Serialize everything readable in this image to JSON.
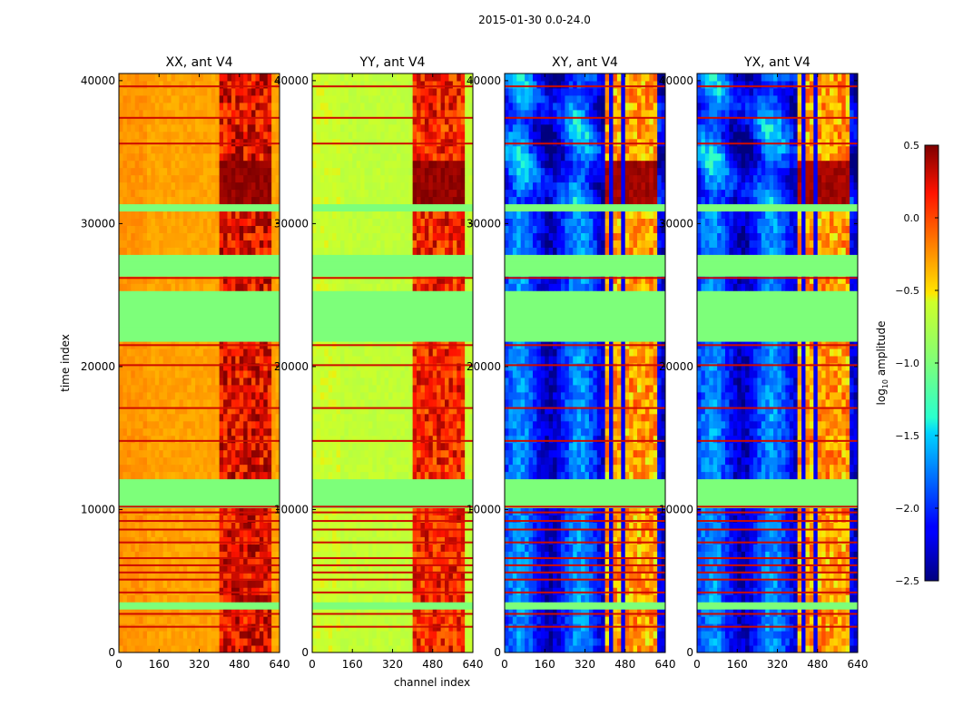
{
  "chart_data": {
    "type": "heatmap",
    "suptitle": "2015-01-30 0.0-24.0",
    "xlabel": "channel index",
    "ylabel": "time index",
    "x_range": [
      0,
      640
    ],
    "y_range": [
      0,
      40500
    ],
    "x_ticks": [
      0,
      160,
      320,
      480,
      640
    ],
    "y_ticks": [
      0,
      10000,
      20000,
      30000,
      40000
    ],
    "colorbar": {
      "label": "log10 amplitude",
      "label_base": "log",
      "label_sub": "10",
      "label_rest": " amplitude",
      "range": [
        -2.5,
        0.5
      ],
      "ticks": [
        0.5,
        0.0,
        -0.5,
        -1.0,
        -1.5,
        -2.0,
        -2.5
      ],
      "tick_labels": [
        "0.5",
        "0.0",
        "−0.5",
        "−1.0",
        "−1.5",
        "−2.0",
        "−2.5"
      ],
      "colormap": "jet"
    },
    "gap_rows": [
      [
        3000,
        3700
      ],
      [
        10300,
        12200
      ],
      [
        12600,
        12700
      ],
      [
        21800,
        25500
      ],
      [
        26500,
        28000
      ],
      [
        30900,
        31000
      ],
      [
        31000,
        31200
      ]
    ],
    "flagged_value": -1.0,
    "panels": [
      {
        "title": "XX, ant V4",
        "polarization": "XX",
        "background_level": -0.3,
        "rfi_band_channels": [
          400,
          600
        ],
        "rfi_band_level": 0.1,
        "strong_rfi_time_range": [
          31500,
          34500
        ],
        "strong_rfi_level": 0.45,
        "gap_fill_level": -1.0
      },
      {
        "title": "YY, ant V4",
        "polarization": "YY",
        "background_level": -0.65,
        "rfi_band_channels": [
          400,
          600
        ],
        "rfi_band_level": 0.0,
        "strong_rfi_time_range": [
          31500,
          34500
        ],
        "strong_rfi_level": 0.45,
        "gap_fill_level": -1.0
      },
      {
        "title": "XY, ant V4",
        "polarization": "XY",
        "background_level": -2.0,
        "rfi_band_channels": [
          400,
          600
        ],
        "rfi_band_level": -0.4,
        "strong_rfi_time_range": [
          31500,
          34500
        ],
        "strong_rfi_level": 0.4,
        "gap_fill_level": -1.0
      },
      {
        "title": "YX, ant V4",
        "polarization": "YX",
        "background_level": -2.0,
        "rfi_band_channels": [
          400,
          600
        ],
        "rfi_band_level": -0.4,
        "strong_rfi_time_range": [
          31500,
          34500
        ],
        "strong_rfi_level": 0.4,
        "gap_fill_level": -1.0
      }
    ]
  }
}
